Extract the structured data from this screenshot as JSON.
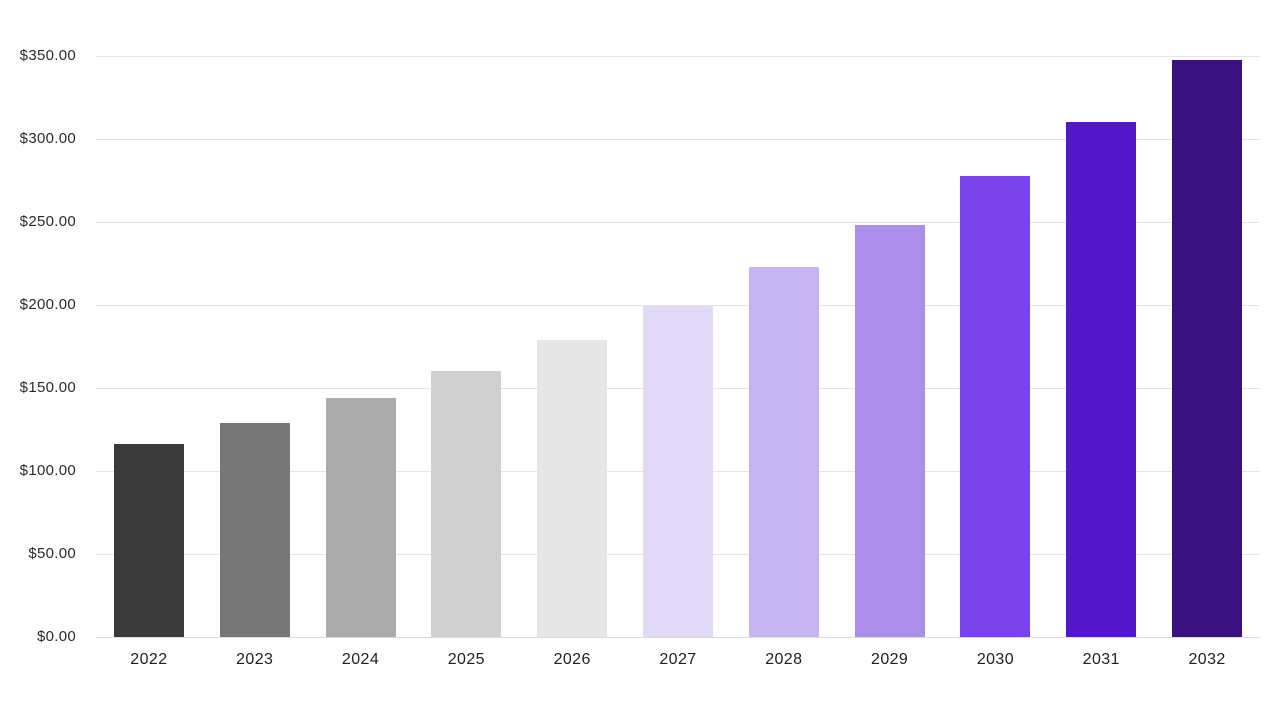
{
  "chart_data": {
    "type": "bar",
    "title": "",
    "xlabel": "",
    "ylabel": "",
    "categories": [
      "2022",
      "2023",
      "2024",
      "2025",
      "2026",
      "2027",
      "2028",
      "2029",
      "2030",
      "2031",
      "2032"
    ],
    "values": [
      116,
      129,
      144,
      160.5,
      179,
      199.5,
      223,
      248.5,
      278,
      310,
      347.5
    ],
    "bar_colors": [
      "#3a3a3a",
      "#777777",
      "#ababab",
      "#d0d0d0",
      "#e6e6e6",
      "#e0d9f7",
      "#c7b5f2",
      "#ab8eec",
      "#7843e8",
      "#5117c9",
      "#3a1280"
    ],
    "y_axis": {
      "min": 0,
      "max": 350,
      "step": 50,
      "tick_labels": [
        "$0.00",
        "$50.00",
        "$100.00",
        "$150.00",
        "$200.00",
        "$250.00",
        "$300.00",
        "$350.00"
      ],
      "format": "currency"
    },
    "grid": true,
    "legend": false,
    "background_color": "#ffffff",
    "gridline_color": "#e4e4e4",
    "label_color": "#1f1f1f"
  }
}
